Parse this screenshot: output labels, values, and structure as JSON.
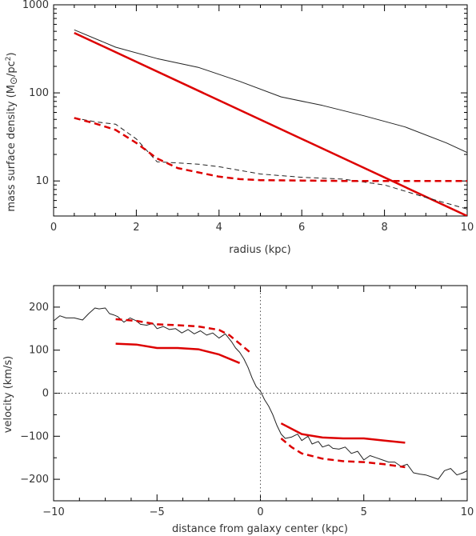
{
  "colors": {
    "observed": "#222222",
    "model": "#dd0000",
    "reference": "#555555"
  },
  "chart_data": [
    {
      "type": "line",
      "title": "",
      "xlabel": "radius (kpc)",
      "ylabel": "mass surface density (M⊙/pc²)",
      "ylabel_parts": [
        "mass surface density (M",
        "⊙",
        "/pc",
        "2",
        ")"
      ],
      "xlim": [
        0,
        10
      ],
      "ylim": [
        4,
        1000
      ],
      "yscale": "log",
      "xticks": [
        0,
        2,
        4,
        6,
        8,
        10
      ],
      "xtick_labels": [
        "0",
        "2",
        "4",
        "6",
        "8",
        "10"
      ],
      "yticks": [
        10,
        100,
        1000
      ],
      "ytick_labels": [
        "10",
        "100",
        "1000"
      ],
      "grid": false,
      "series": [
        {
          "style": "thin-solid",
          "color": "#222222",
          "x": [
            0.5,
            1.5,
            2.5,
            3.5,
            4.5,
            5.5,
            6.5,
            7.5,
            8.5,
            9.5,
            10
          ],
          "y": [
            520,
            330,
            245,
            195,
            135,
            90,
            72,
            55,
            41,
            27,
            21
          ]
        },
        {
          "style": "thick-solid",
          "color": "#dd0000",
          "x": [
            0.5,
            10
          ],
          "y": [
            480,
            4
          ]
        },
        {
          "style": "thin-dashed",
          "color": "#222222",
          "x": [
            0.5,
            1.0,
            1.5,
            2.0,
            2.5,
            3.0,
            3.5,
            4.0,
            5.0,
            6.0,
            7.0,
            8.0,
            9.0,
            10.0
          ],
          "y": [
            52,
            47,
            44,
            30,
            16.5,
            16,
            15.5,
            14.5,
            12,
            11,
            10.5,
            9,
            6.5,
            4.8
          ]
        },
        {
          "style": "thick-dashed",
          "color": "#dd0000",
          "x": [
            0.5,
            1.0,
            1.5,
            2.0,
            2.5,
            3.0,
            3.5,
            4.0,
            4.5,
            5.0,
            6.0,
            7.0,
            8.0,
            9.0,
            10.0
          ],
          "y": [
            52,
            45,
            38,
            27,
            18,
            14,
            12.5,
            11.2,
            10.5,
            10.2,
            10.1,
            10,
            10,
            10,
            10
          ]
        }
      ]
    },
    {
      "type": "line",
      "title": "",
      "xlabel": "distance from galaxy center (kpc)",
      "ylabel": "velocity (km/s)",
      "xlim": [
        -10,
        10
      ],
      "ylim": [
        -250,
        250
      ],
      "yscale": "linear",
      "xticks": [
        -10,
        -5,
        0,
        5,
        10
      ],
      "xtick_labels": [
        "−10",
        "−5",
        "0",
        "5",
        "10"
      ],
      "yticks": [
        -200,
        -100,
        0,
        100,
        200
      ],
      "ytick_labels": [
        "−200",
        "−100",
        "0",
        "100",
        "200"
      ],
      "reference_lines": {
        "x": 0,
        "y": 0
      },
      "grid": false,
      "series": [
        {
          "style": "thin-solid",
          "color": "#222222",
          "x": [
            -10,
            -9.7,
            -9.4,
            -9.0,
            -8.6,
            -8.3,
            -8.0,
            -7.8,
            -7.5,
            -7.3,
            -7.1,
            -6.9,
            -6.6,
            -6.3,
            -6.0,
            -5.8,
            -5.5,
            -5.2,
            -5.0,
            -4.7,
            -4.4,
            -4.1,
            -3.8,
            -3.5,
            -3.2,
            -2.9,
            -2.6,
            -2.3,
            -2.0,
            -1.7,
            -1.4,
            -1.2,
            -1.0,
            -0.8,
            -0.6,
            -0.4,
            -0.2,
            0.0,
            0.2,
            0.4,
            0.6,
            0.8,
            1.0,
            1.2,
            1.5,
            1.8,
            2.0,
            2.3,
            2.5,
            2.8,
            3.0,
            3.3,
            3.5,
            3.8,
            4.1,
            4.4,
            4.7,
            5.0,
            5.3,
            5.6,
            5.9,
            6.2,
            6.5,
            6.8,
            7.1,
            7.4,
            7.7,
            8.0,
            8.3,
            8.6,
            8.9,
            9.2,
            9.5,
            9.8,
            10.0
          ],
          "y": [
            168,
            180,
            175,
            175,
            170,
            185,
            198,
            196,
            198,
            185,
            182,
            178,
            165,
            175,
            168,
            160,
            158,
            162,
            150,
            155,
            148,
            150,
            140,
            148,
            138,
            145,
            135,
            140,
            128,
            138,
            120,
            105,
            95,
            80,
            60,
            35,
            15,
            5,
            -15,
            -30,
            -50,
            -75,
            -95,
            -105,
            -102,
            -95,
            -110,
            -100,
            -118,
            -112,
            -125,
            -120,
            -128,
            -130,
            -125,
            -140,
            -135,
            -155,
            -145,
            -150,
            -155,
            -160,
            -160,
            -170,
            -165,
            -185,
            -188,
            -190,
            -195,
            -200,
            -180,
            -175,
            -190,
            -185,
            -180
          ]
        },
        {
          "style": "thick-solid",
          "color": "#dd0000",
          "x": [
            -7,
            -6,
            -5,
            -4,
            -3,
            -2,
            -1
          ],
          "y": [
            115,
            113,
            105,
            105,
            102,
            90,
            70
          ]
        },
        {
          "style": "thick-solid",
          "color": "#dd0000",
          "x": [
            1,
            2,
            3,
            4,
            5,
            6,
            7
          ],
          "y": [
            -70,
            -95,
            -103,
            -105,
            -105,
            -110,
            -115
          ]
        },
        {
          "style": "thick-dashed",
          "color": "#dd0000",
          "x": [
            -7,
            -6,
            -5,
            -4,
            -3,
            -2,
            -1.5,
            -1.0,
            -0.5
          ],
          "y": [
            172,
            168,
            160,
            158,
            155,
            147,
            135,
            115,
            95
          ]
        },
        {
          "style": "thick-dashed",
          "color": "#dd0000",
          "x": [
            1,
            1.5,
            2,
            3,
            4,
            5,
            6,
            7
          ],
          "y": [
            -105,
            -125,
            -140,
            -152,
            -158,
            -160,
            -165,
            -172
          ]
        }
      ]
    }
  ]
}
